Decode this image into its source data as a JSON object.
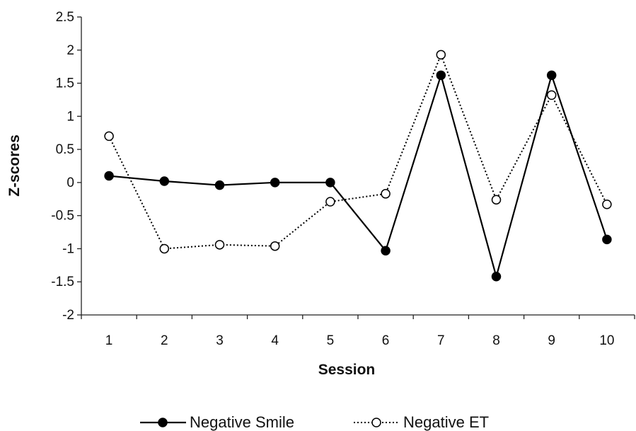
{
  "chart_data": {
    "type": "line",
    "title": "",
    "xlabel": "Session",
    "ylabel": "Z-scores",
    "categories": [
      "1",
      "2",
      "3",
      "4",
      "5",
      "6",
      "7",
      "8",
      "9",
      "10"
    ],
    "ylim": [
      -2,
      2.5
    ],
    "yticks": [
      "2.5",
      "2",
      "1.5",
      "1",
      "0.5",
      "0",
      "-0.5",
      "-1",
      "-1.5",
      "-2"
    ],
    "grid": false,
    "legend_position": "bottom",
    "series": [
      {
        "name": "Negative Smile",
        "style": "solid",
        "marker": "filled-circle",
        "color": "#000000",
        "values": [
          0.1,
          0.02,
          -0.04,
          0.0,
          0.0,
          -1.03,
          1.62,
          -1.42,
          1.62,
          -0.86
        ]
      },
      {
        "name": "Negative ET",
        "style": "dotted",
        "marker": "open-circle",
        "color": "#000000",
        "values": [
          0.7,
          -1.0,
          -0.94,
          -0.96,
          -0.29,
          -0.17,
          1.93,
          -0.26,
          1.32,
          -0.33
        ]
      }
    ]
  }
}
